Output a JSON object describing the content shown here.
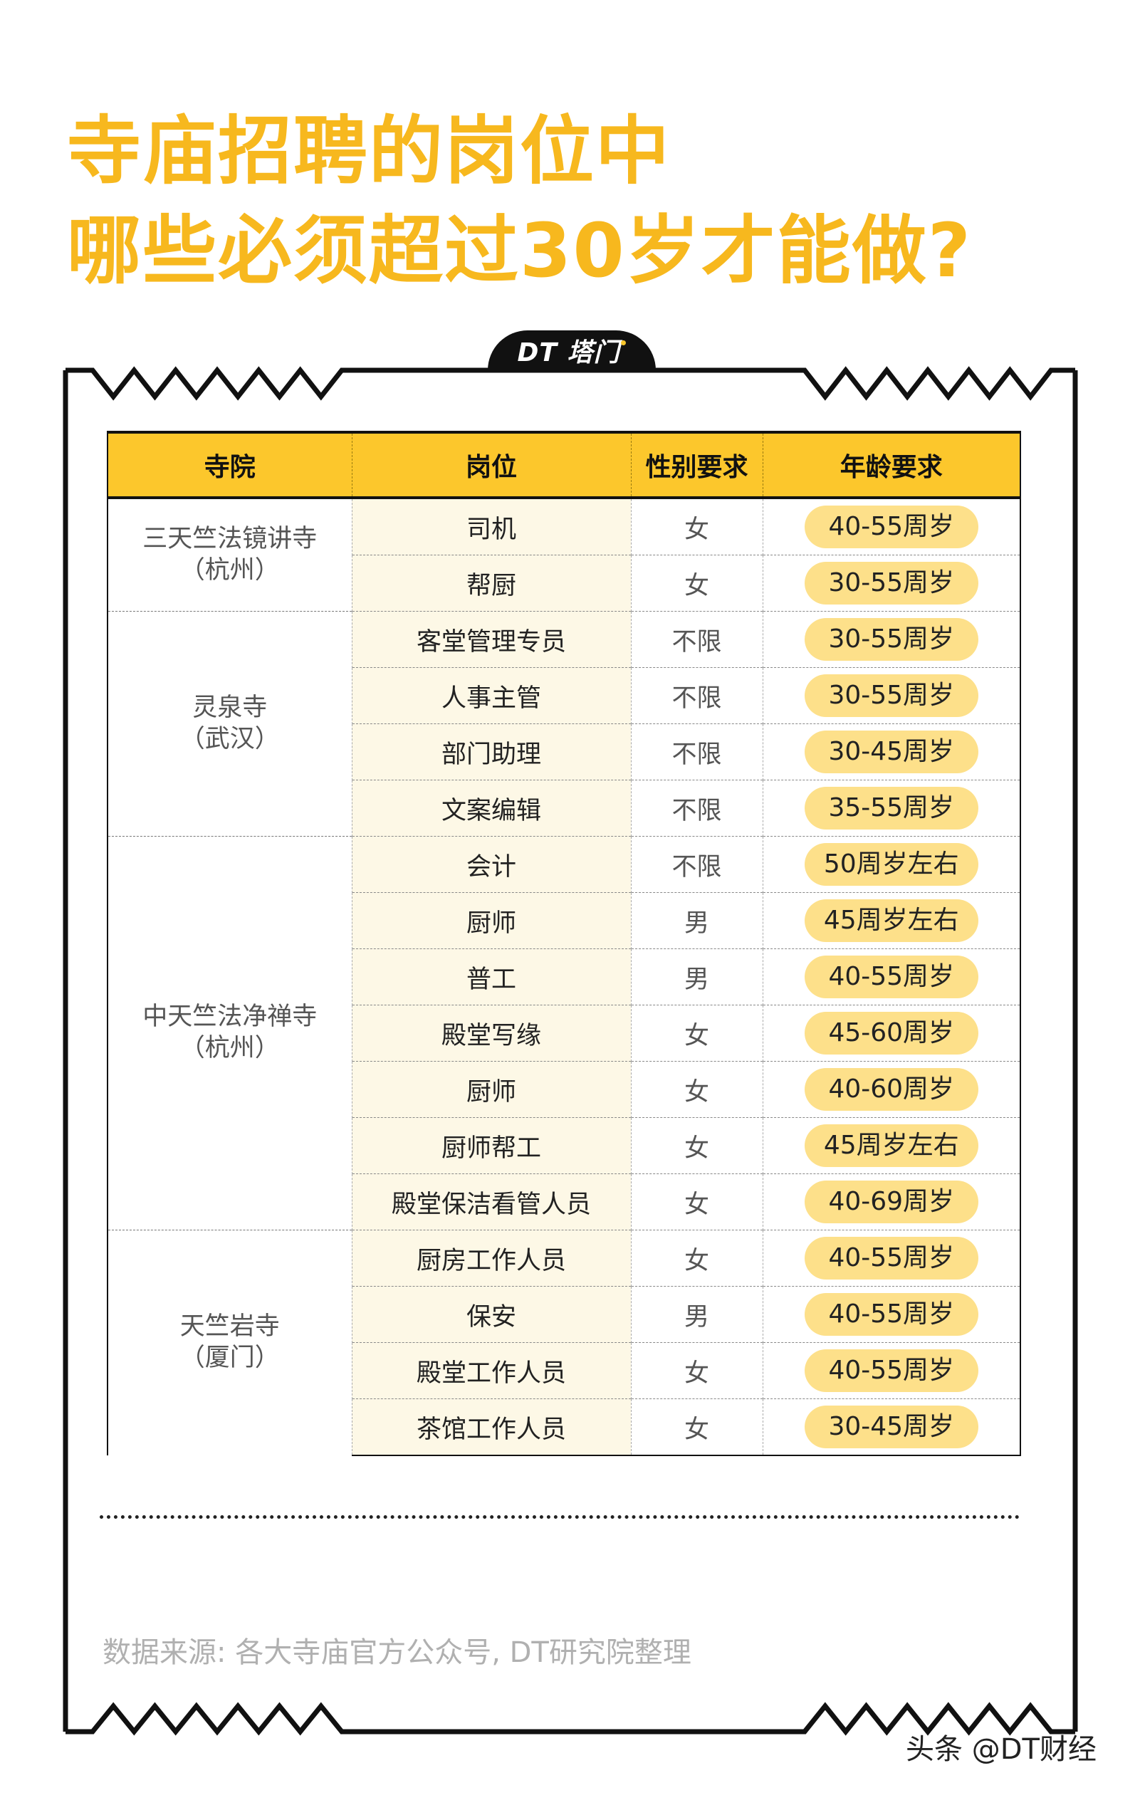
{
  "title": {
    "line1": "寺庙招聘的岗位中",
    "line2": "哪些必须超过30岁才能做?"
  },
  "logo": {
    "text": "DT 塔门"
  },
  "colors": {
    "accent": "#f7b81e",
    "header_bg": "#fcc72c",
    "pill_bg": "#fde08a",
    "position_col_bg": "#fdf8e6"
  },
  "table": {
    "headers": [
      "寺院",
      "岗位",
      "性别要求",
      "年龄要求"
    ],
    "groups": [
      {
        "temple": "三天竺法镜讲寺",
        "city": "（杭州）",
        "rows": [
          {
            "position": "司机",
            "gender": "女",
            "age": "40-55周岁"
          },
          {
            "position": "帮厨",
            "gender": "女",
            "age": "30-55周岁"
          }
        ]
      },
      {
        "temple": "灵泉寺",
        "city": "（武汉）",
        "rows": [
          {
            "position": "客堂管理专员",
            "gender": "不限",
            "age": "30-55周岁"
          },
          {
            "position": "人事主管",
            "gender": "不限",
            "age": "30-55周岁"
          },
          {
            "position": "部门助理",
            "gender": "不限",
            "age": "30-45周岁"
          },
          {
            "position": "文案编辑",
            "gender": "不限",
            "age": "35-55周岁"
          }
        ]
      },
      {
        "temple": "中天竺法净禅寺",
        "city": "（杭州）",
        "rows": [
          {
            "position": "会计",
            "gender": "不限",
            "age": "50周岁左右"
          },
          {
            "position": "厨师",
            "gender": "男",
            "age": "45周岁左右"
          },
          {
            "position": "普工",
            "gender": "男",
            "age": "40-55周岁"
          },
          {
            "position": "殿堂写缘",
            "gender": "女",
            "age": "45-60周岁"
          },
          {
            "position": "厨师",
            "gender": "女",
            "age": "40-60周岁"
          },
          {
            "position": "厨师帮工",
            "gender": "女",
            "age": "45周岁左右"
          },
          {
            "position": "殿堂保洁看管人员",
            "gender": "女",
            "age": "40-69周岁"
          }
        ]
      },
      {
        "temple": "天竺岩寺",
        "city": "（厦门）",
        "rows": [
          {
            "position": "厨房工作人员",
            "gender": "女",
            "age": "40-55周岁"
          },
          {
            "position": "保安",
            "gender": "男",
            "age": "40-55周岁"
          },
          {
            "position": "殿堂工作人员",
            "gender": "女",
            "age": "40-55周岁"
          },
          {
            "position": "茶馆工作人员",
            "gender": "女",
            "age": "30-45周岁"
          }
        ]
      }
    ]
  },
  "source": "数据来源: 各大寺庙官方公众号, DT研究院整理",
  "watermark": "头条 @DT财经"
}
